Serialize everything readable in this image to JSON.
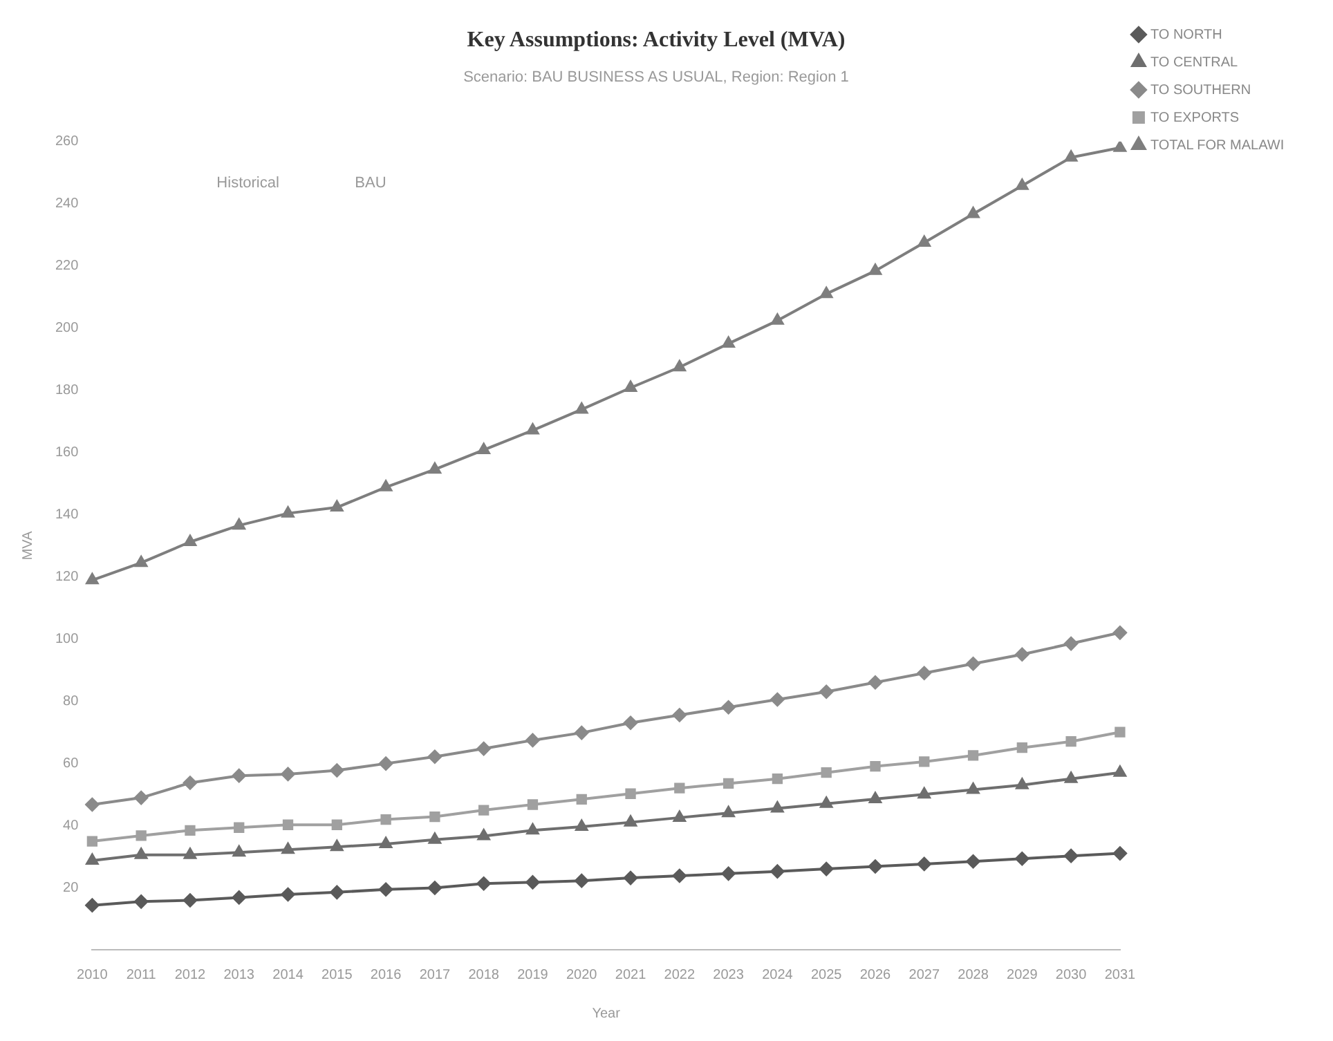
{
  "chart_data": {
    "type": "line",
    "title": "Key Assumptions: Activity Level (MVA)",
    "subtitle": "Scenario: BAU BUSINESS AS USUAL, Region: Region 1",
    "xlabel": "Year",
    "ylabel": "MVA",
    "categories": [
      "2010",
      "2011",
      "2012",
      "2013",
      "2014",
      "2015",
      "2016",
      "2017",
      "2018",
      "2019",
      "2020",
      "2021",
      "2022",
      "2023",
      "2024",
      "2025",
      "2026",
      "2027",
      "2028",
      "2029",
      "2030",
      "2031"
    ],
    "series": [
      {
        "name": "TO NORTH",
        "color": "#5a5a5a",
        "marker": "diamond",
        "values": [
          14.3,
          15.5,
          15.9,
          16.8,
          17.8,
          18.5,
          19.4,
          19.9,
          21.3,
          21.7,
          22.2,
          23.1,
          23.8,
          24.5,
          25.2,
          26,
          26.8,
          27.6,
          28.4,
          29.3,
          30.2,
          31
        ]
      },
      {
        "name": "TO CENTRAL",
        "color": "#6e6e6e",
        "marker": "triangle",
        "values": [
          28.7,
          30.5,
          30.5,
          31.3,
          32.2,
          33.1,
          34,
          35.4,
          36.6,
          38.4,
          39.6,
          41,
          42.5,
          44,
          45.5,
          47,
          48.5,
          50,
          51.5,
          53,
          55,
          57
        ]
      },
      {
        "name": "TO SOUTHERN",
        "color": "#8a8a8a",
        "marker": "diamond",
        "values": [
          46.7,
          48.9,
          53.7,
          56,
          56.5,
          57.7,
          59.9,
          62.1,
          64.7,
          67.4,
          69.8,
          73,
          75.5,
          78,
          80.5,
          83,
          86,
          89,
          92,
          95,
          98.5,
          102
        ]
      },
      {
        "name": "TO EXPORTS",
        "color": "#a0a0a0",
        "marker": "square",
        "values": [
          34.9,
          36.7,
          38.4,
          39.3,
          40.2,
          40.2,
          41.9,
          42.8,
          44.9,
          46.7,
          48.4,
          50.2,
          52,
          53.5,
          55,
          57,
          59,
          60.5,
          62.5,
          65,
          67,
          70
        ]
      },
      {
        "name": "TOTAL FOR MALAWI",
        "color": "#7e7e7e",
        "marker": "triangle",
        "values": [
          118.9,
          124.5,
          131.2,
          136.5,
          140.4,
          142.3,
          148.8,
          154.5,
          160.8,
          167.1,
          173.8,
          180.8,
          187.4,
          195,
          202.4,
          211,
          218.4,
          227.5,
          236.7,
          245.8,
          254.9,
          258
        ]
      }
    ],
    "ylim": [
      0,
      260
    ],
    "yticks": [
      20,
      40,
      60,
      80,
      100,
      120,
      140,
      160,
      180,
      200,
      220,
      240,
      260
    ],
    "grid": false,
    "legend": "top right",
    "line_style": "solid",
    "annotations": [
      "Historical",
      "BAU"
    ]
  }
}
